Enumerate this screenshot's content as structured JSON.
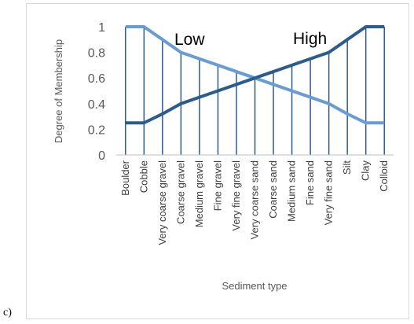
{
  "panel_label": "c)",
  "chart_data": {
    "type": "line",
    "title": "",
    "xlabel": "Sediment type",
    "ylabel": "Degree of Membership",
    "ylim": [
      0,
      1
    ],
    "yticks": [
      "0",
      "0.2",
      "0.4",
      "0.6",
      "0.8",
      "1"
    ],
    "grid": false,
    "legend": "none",
    "categories": [
      "Boulder",
      "Cobble",
      "Very coarse gravel",
      "Coarse gravel",
      "Medium gravel",
      "Fine gravel",
      "Very fine gravel",
      "Very coarse sand",
      "Coarse sand",
      "Medium sand",
      "Fine sand",
      "Very fine sand",
      "Silt",
      "Clay",
      "Colloid"
    ],
    "series": [
      {
        "values": [
          1,
          1,
          0.9,
          0.8,
          0.75,
          0.7,
          0.65,
          0.6,
          0.55,
          0.5,
          0.45,
          0.4,
          0.32,
          0.25,
          0.25
        ],
        "color": "#6a9bd1"
      },
      {
        "values": [
          0.25,
          0.25,
          0.32,
          0.4,
          0.45,
          0.5,
          0.55,
          0.6,
          0.65,
          0.7,
          0.75,
          0.8,
          0.9,
          1,
          1
        ],
        "color": "#2e5c8a"
      }
    ],
    "drop_lines": true,
    "drop_line_color": "#2e5c8a",
    "annotations": [
      "Low",
      "High"
    ]
  }
}
